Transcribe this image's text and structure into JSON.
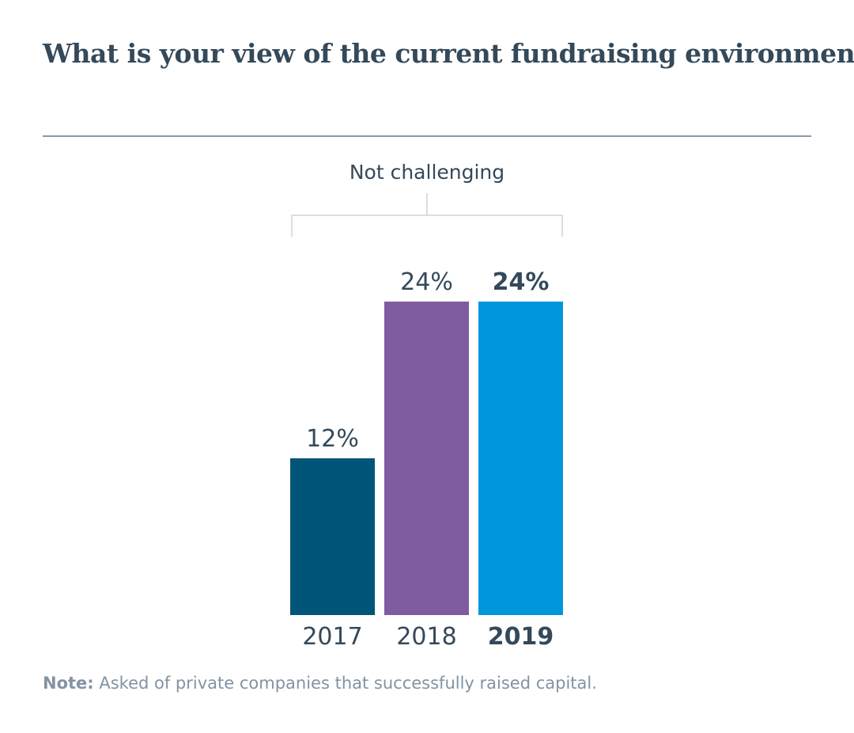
{
  "chart_data": {
    "type": "bar",
    "title": "What is your view of the current fundraising environment?",
    "group_label": "Not challenging",
    "categories": [
      "2017",
      "2018",
      "2019"
    ],
    "values": [
      12,
      24,
      24
    ],
    "value_labels": [
      "12%",
      "24%",
      "24%"
    ],
    "highlight_index": 2,
    "colors": [
      "#015578",
      "#7f5b9f",
      "#0096db"
    ],
    "ylim": [
      0,
      24
    ],
    "xlabel": "",
    "ylabel": "",
    "grid": false,
    "legend": "none"
  },
  "note": {
    "label": "Note:",
    "text": "Asked of private companies that successfully raised capital."
  }
}
